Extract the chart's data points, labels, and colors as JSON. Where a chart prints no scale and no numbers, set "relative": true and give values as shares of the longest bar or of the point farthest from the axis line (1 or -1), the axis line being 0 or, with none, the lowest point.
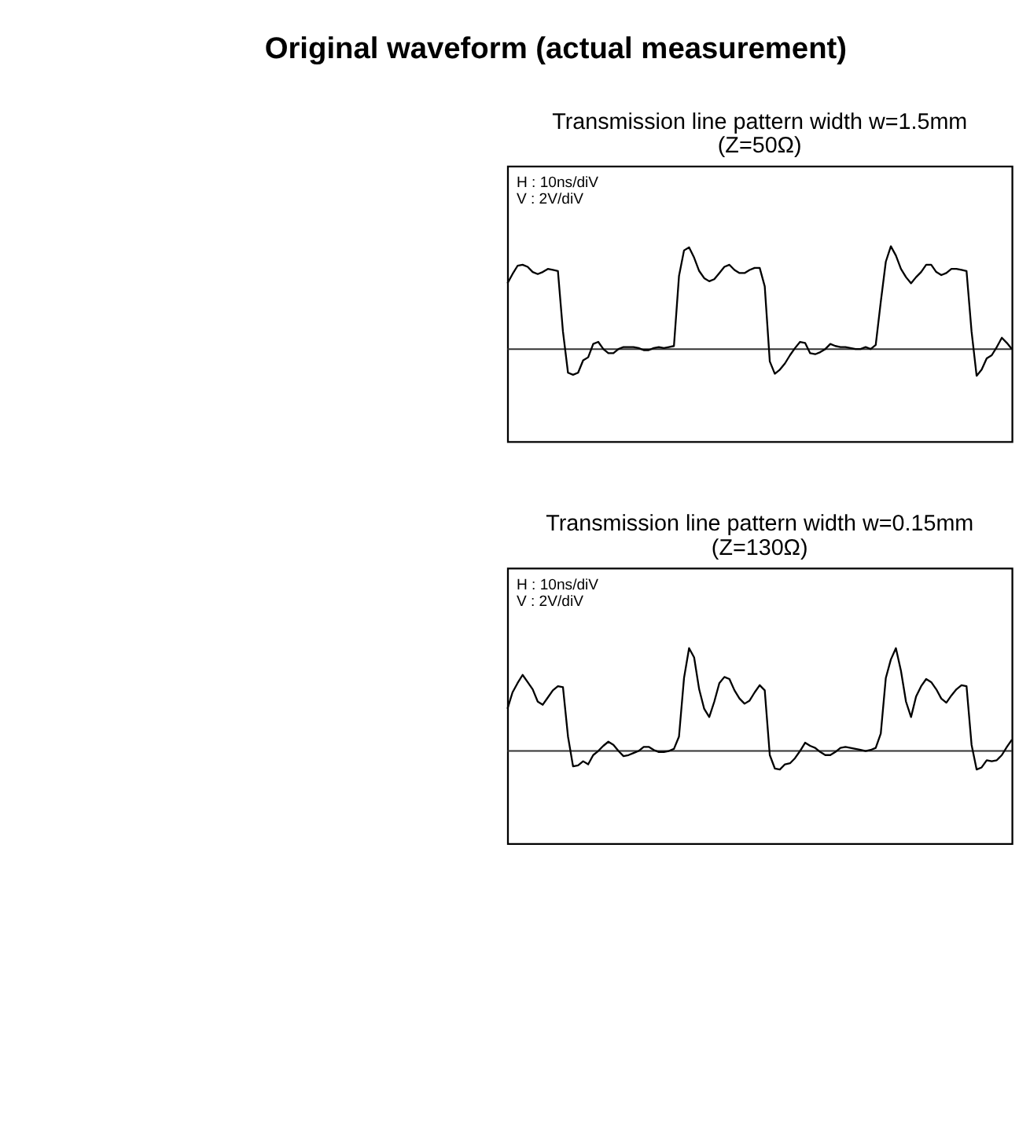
{
  "chart_data": [
    {
      "type": "line",
      "title": "Transmission line pattern width w=1.5mm",
      "subtitle": "(Z=50Ω)",
      "relative": true,
      "color": "#000000",
      "annotations": [
        "Original waveform (actual measurement)",
        "H : 10ns/diV",
        "V : 2V/diV"
      ],
      "categories": [
        null,
        null,
        null,
        null,
        null,
        null,
        null,
        null,
        null,
        null,
        null,
        null,
        null,
        null,
        null,
        null,
        null,
        null,
        null,
        null,
        null,
        null,
        null,
        null,
        null,
        null,
        null,
        null,
        null,
        null,
        null,
        null,
        null,
        null,
        null,
        null,
        null,
        null,
        null,
        null,
        null,
        null,
        null,
        null,
        null,
        null,
        null,
        null,
        null,
        null,
        null,
        null,
        null,
        null,
        null,
        null,
        null,
        null,
        null,
        null,
        null,
        null,
        null,
        null,
        null,
        null,
        null,
        null,
        null,
        null,
        null,
        null,
        null,
        null,
        null,
        null,
        null,
        null,
        null,
        null,
        null,
        null,
        null,
        null,
        null,
        null,
        null,
        null,
        null,
        null,
        null,
        null,
        null,
        null,
        null,
        null,
        null,
        null,
        null,
        null,
        null
      ],
      "values": [
        0.64,
        0.73,
        0.81,
        0.82,
        0.8,
        0.75,
        0.73,
        0.75,
        0.78,
        0.77,
        0.76,
        0.17,
        -0.23,
        -0.25,
        -0.23,
        -0.11,
        -0.08,
        0.05,
        0.07,
        0.0,
        -0.04,
        -0.04,
        0.0,
        0.02,
        0.02,
        0.02,
        0.01,
        -0.01,
        -0.01,
        0.01,
        0.02,
        0.01,
        0.02,
        0.03,
        0.71,
        0.96,
        0.99,
        0.89,
        0.76,
        0.69,
        0.66,
        0.68,
        0.74,
        0.8,
        0.82,
        0.77,
        0.74,
        0.74,
        0.77,
        0.79,
        0.79,
        0.61,
        -0.12,
        -0.24,
        -0.2,
        -0.14,
        -0.06,
        0.01,
        0.07,
        0.06,
        -0.04,
        -0.05,
        -0.03,
        0.0,
        0.05,
        0.03,
        0.02,
        0.02,
        0.01,
        0.0,
        0.0,
        0.02,
        0.0,
        0.04,
        0.46,
        0.85,
        1,
        0.91,
        0.78,
        0.7,
        0.64,
        0.7,
        0.75,
        0.82,
        0.82,
        0.75,
        0.72,
        0.74,
        0.78,
        0.78,
        0.77,
        0.76,
        0.17,
        -0.26,
        -0.2,
        -0.09,
        -0.06,
        0.02,
        0.11,
        0.06,
        0.0
      ]
    },
    {
      "type": "line",
      "title": "Transmission line pattern width w=0.15mm",
      "subtitle": "(Z=130Ω)",
      "relative": true,
      "color": "#000000",
      "annotations": [
        "H : 10ns/diV",
        "V : 2V/diV"
      ],
      "categories": [
        null,
        null,
        null,
        null,
        null,
        null,
        null,
        null,
        null,
        null,
        null,
        null,
        null,
        null,
        null,
        null,
        null,
        null,
        null,
        null,
        null,
        null,
        null,
        null,
        null,
        null,
        null,
        null,
        null,
        null,
        null,
        null,
        null,
        null,
        null,
        null,
        null,
        null,
        null,
        null,
        null,
        null,
        null,
        null,
        null,
        null,
        null,
        null,
        null,
        null,
        null,
        null,
        null,
        null,
        null,
        null,
        null,
        null,
        null,
        null,
        null,
        null,
        null,
        null,
        null,
        null,
        null,
        null,
        null,
        null,
        null,
        null,
        null,
        null,
        null,
        null,
        null,
        null,
        null,
        null,
        null,
        null,
        null,
        null,
        null,
        null,
        null,
        null,
        null,
        null,
        null,
        null,
        null,
        null,
        null,
        null,
        null,
        null,
        null,
        null,
        null
      ],
      "values": [
        0.41,
        0.57,
        0.66,
        0.74,
        0.67,
        0.6,
        0.48,
        0.45,
        0.52,
        0.59,
        0.63,
        0.62,
        0.14,
        -0.15,
        -0.14,
        -0.1,
        -0.13,
        -0.04,
        0.0,
        0.05,
        0.09,
        0.06,
        0.0,
        -0.05,
        -0.04,
        -0.02,
        0.0,
        0.04,
        0.04,
        0.01,
        -0.01,
        -0.01,
        0.0,
        0.02,
        0.14,
        0.71,
        1,
        0.91,
        0.6,
        0.41,
        0.33,
        0.48,
        0.66,
        0.72,
        0.7,
        0.59,
        0.51,
        0.46,
        0.49,
        0.57,
        0.64,
        0.59,
        -0.04,
        -0.17,
        -0.18,
        -0.13,
        -0.12,
        -0.07,
        0.0,
        0.08,
        0.05,
        0.03,
        -0.01,
        -0.04,
        -0.04,
        -0.01,
        0.03,
        0.04,
        0.03,
        0.02,
        0.01,
        0.0,
        0.01,
        0.03,
        0.17,
        0.71,
        0.89,
        1,
        0.78,
        0.48,
        0.33,
        0.53,
        0.63,
        0.7,
        0.67,
        0.6,
        0.51,
        0.47,
        0.54,
        0.6,
        0.64,
        0.63,
        0.06,
        -0.18,
        -0.16,
        -0.09,
        -0.1,
        -0.09,
        -0.04,
        0.04,
        0.11
      ]
    }
  ]
}
